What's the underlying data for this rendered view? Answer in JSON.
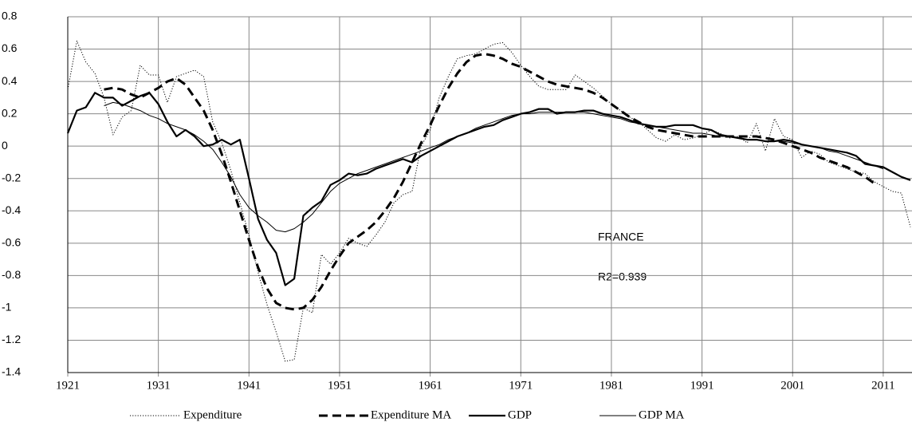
{
  "chart_data": {
    "type": "line",
    "annotations": [
      "FRANCE",
      "R2=0.939"
    ],
    "xlim": [
      1921,
      2014
    ],
    "xticks": [
      1921,
      1931,
      1941,
      1951,
      1961,
      1971,
      1981,
      1991,
      2001,
      2011
    ],
    "ylim": [
      -1.4,
      0.8
    ],
    "yticks": [
      0.8,
      0.6,
      0.4,
      0.2,
      0,
      -0.2,
      -0.4,
      -0.6,
      -0.8,
      -1,
      -1.2,
      -1.4
    ],
    "grid": true,
    "legend": "bottom",
    "x": [
      1921,
      1922,
      1923,
      1924,
      1925,
      1926,
      1927,
      1928,
      1929,
      1930,
      1931,
      1932,
      1933,
      1934,
      1935,
      1936,
      1937,
      1938,
      1939,
      1940,
      1941,
      1942,
      1943,
      1944,
      1945,
      1946,
      1947,
      1948,
      1949,
      1950,
      1951,
      1952,
      1953,
      1954,
      1955,
      1956,
      1957,
      1958,
      1959,
      1960,
      1961,
      1962,
      1963,
      1964,
      1965,
      1966,
      1967,
      1968,
      1969,
      1970,
      1971,
      1972,
      1973,
      1974,
      1975,
      1976,
      1977,
      1978,
      1979,
      1980,
      1981,
      1982,
      1983,
      1984,
      1985,
      1986,
      1987,
      1988,
      1989,
      1990,
      1991,
      1992,
      1993,
      1994,
      1995,
      1996,
      1997,
      1998,
      1999,
      2000,
      2001,
      2002,
      2003,
      2004,
      2005,
      2006,
      2007,
      2008,
      2009,
      2010,
      2011,
      2012,
      2013,
      2014
    ],
    "series": [
      {
        "name": "Expenditure",
        "color": "#000000",
        "line_style": "dotted",
        "line_weight": "thin",
        "values": [
          0.35,
          0.65,
          0.52,
          0.45,
          0.3,
          0.07,
          0.18,
          0.22,
          0.5,
          0.44,
          0.44,
          0.27,
          0.43,
          0.45,
          0.47,
          0.43,
          0.15,
          0.02,
          -0.15,
          -0.35,
          -0.55,
          -0.78,
          -0.98,
          -1.15,
          -1.33,
          -1.32,
          -1.0,
          -1.03,
          -0.67,
          -0.73,
          -0.66,
          -0.57,
          -0.6,
          -0.62,
          -0.55,
          -0.47,
          -0.35,
          -0.3,
          -0.28,
          0.0,
          0.1,
          0.3,
          0.43,
          0.54,
          0.56,
          0.57,
          0.6,
          0.63,
          0.64,
          0.58,
          0.5,
          0.43,
          0.37,
          0.35,
          0.35,
          0.35,
          0.44,
          0.4,
          0.36,
          0.31,
          0.26,
          0.22,
          0.18,
          0.15,
          0.1,
          0.05,
          0.03,
          0.07,
          0.04,
          0.05,
          0.07,
          0.1,
          0.08,
          0.05,
          0.06,
          0.02,
          0.14,
          -0.03,
          0.17,
          0.06,
          0.04,
          -0.07,
          -0.03,
          -0.05,
          -0.1,
          -0.12,
          -0.14,
          -0.16,
          -0.17,
          -0.22,
          -0.25,
          -0.28,
          -0.29,
          -0.5
        ]
      },
      {
        "name": "Expenditure MA",
        "color": "#000000",
        "line_style": "dashed",
        "line_weight": "thick",
        "values": [
          null,
          null,
          null,
          null,
          0.35,
          0.36,
          0.35,
          0.32,
          0.3,
          0.33,
          0.36,
          0.4,
          0.42,
          0.38,
          0.3,
          0.22,
          0.1,
          -0.05,
          -0.22,
          -0.4,
          -0.58,
          -0.75,
          -0.88,
          -0.97,
          -1.0,
          -1.01,
          -1.0,
          -0.95,
          -0.87,
          -0.77,
          -0.68,
          -0.6,
          -0.56,
          -0.52,
          -0.47,
          -0.4,
          -0.32,
          -0.22,
          -0.1,
          0.02,
          0.13,
          0.25,
          0.36,
          0.45,
          0.52,
          0.56,
          0.57,
          0.56,
          0.54,
          0.51,
          0.49,
          0.46,
          0.43,
          0.4,
          0.38,
          0.37,
          0.36,
          0.35,
          0.33,
          0.3,
          0.26,
          0.22,
          0.18,
          0.15,
          0.12,
          0.1,
          0.09,
          0.08,
          0.07,
          0.06,
          0.06,
          0.06,
          0.06,
          0.06,
          0.06,
          0.06,
          0.06,
          0.05,
          0.04,
          0.02,
          0.0,
          -0.02,
          -0.04,
          -0.07,
          -0.09,
          -0.11,
          -0.13,
          -0.16,
          -0.19,
          -0.23,
          null,
          null,
          null,
          null
        ]
      },
      {
        "name": "GDP",
        "color": "#000000",
        "line_style": "solid",
        "line_weight": "thick",
        "values": [
          0.08,
          0.22,
          0.24,
          0.33,
          0.3,
          0.3,
          0.25,
          0.28,
          0.31,
          0.33,
          0.26,
          0.15,
          0.06,
          0.1,
          0.06,
          0.0,
          0.01,
          0.04,
          0.01,
          0.04,
          -0.2,
          -0.45,
          -0.58,
          -0.66,
          -0.86,
          -0.82,
          -0.43,
          -0.38,
          -0.34,
          -0.24,
          -0.21,
          -0.17,
          -0.18,
          -0.17,
          -0.14,
          -0.12,
          -0.1,
          -0.08,
          -0.1,
          -0.06,
          -0.03,
          0.0,
          0.03,
          0.06,
          0.08,
          0.1,
          0.12,
          0.13,
          0.16,
          0.18,
          0.2,
          0.21,
          0.23,
          0.23,
          0.2,
          0.21,
          0.21,
          0.22,
          0.22,
          0.2,
          0.19,
          0.18,
          0.16,
          0.14,
          0.13,
          0.12,
          0.12,
          0.13,
          0.13,
          0.13,
          0.11,
          0.1,
          0.07,
          0.06,
          0.05,
          0.04,
          0.04,
          0.03,
          0.03,
          0.04,
          0.03,
          0.01,
          0.0,
          -0.01,
          -0.02,
          -0.03,
          -0.04,
          -0.06,
          -0.11,
          -0.12,
          -0.13,
          -0.16,
          -0.19,
          -0.21
        ]
      },
      {
        "name": "GDP MA",
        "color": "#000000",
        "line_style": "solid",
        "line_weight": "thin",
        "values": [
          null,
          null,
          null,
          null,
          0.25,
          0.27,
          0.26,
          0.24,
          0.22,
          0.19,
          0.17,
          0.14,
          0.12,
          0.1,
          0.07,
          0.03,
          -0.02,
          -0.1,
          -0.19,
          -0.3,
          -0.38,
          -0.43,
          -0.47,
          -0.52,
          -0.53,
          -0.51,
          -0.47,
          -0.42,
          -0.35,
          -0.28,
          -0.23,
          -0.2,
          -0.17,
          -0.15,
          -0.13,
          -0.11,
          -0.09,
          -0.07,
          -0.05,
          -0.03,
          -0.01,
          0.01,
          0.04,
          0.06,
          0.08,
          0.11,
          0.13,
          0.15,
          0.17,
          0.19,
          0.2,
          0.2,
          0.21,
          0.21,
          0.21,
          0.21,
          0.21,
          0.21,
          0.2,
          0.19,
          0.18,
          0.17,
          0.15,
          0.14,
          0.13,
          0.12,
          0.11,
          0.1,
          0.09,
          0.08,
          0.08,
          0.07,
          0.06,
          0.06,
          0.05,
          0.04,
          0.04,
          0.03,
          0.03,
          0.03,
          0.02,
          0.01,
          0.0,
          -0.01,
          -0.03,
          -0.04,
          -0.06,
          -0.08,
          -0.1,
          -0.12,
          -0.14,
          null,
          null,
          null
        ]
      }
    ]
  }
}
